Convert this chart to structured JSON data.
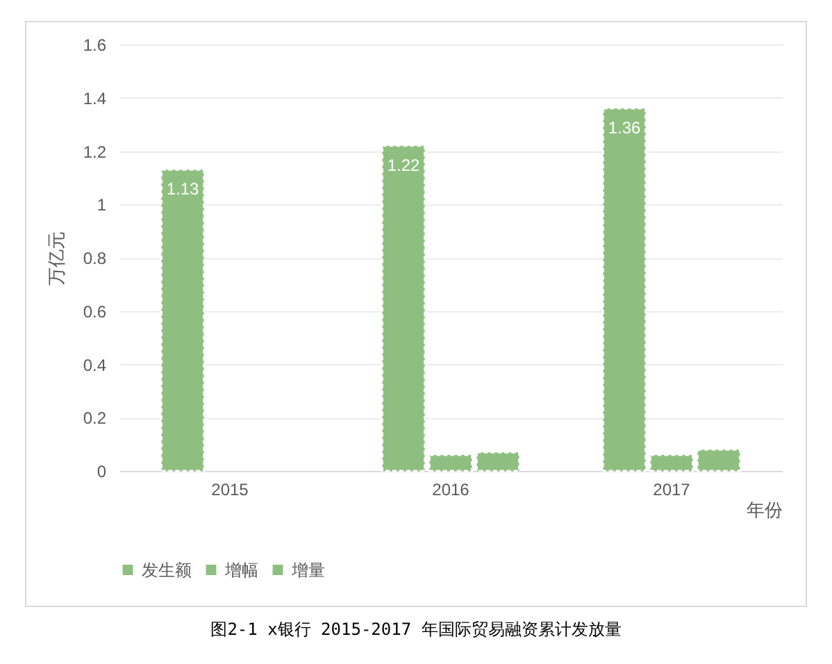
{
  "chart_data": {
    "type": "bar",
    "ylabel": "万亿元",
    "xlabel": "年份",
    "categories": [
      "2015",
      "2016",
      "2017"
    ],
    "series": [
      {
        "name": "发生额",
        "color": "#8fbf80",
        "values": [
          1.13,
          1.22,
          1.36
        ],
        "value_labels": [
          "1.13",
          "1.22",
          "1.36"
        ]
      },
      {
        "name": "增幅",
        "color": "#8fbf80",
        "values": [
          null,
          0.06,
          0.06
        ]
      },
      {
        "name": "增量",
        "color": "#8fbf80",
        "values": [
          null,
          0.07,
          0.08
        ]
      }
    ],
    "ylim": [
      0,
      1.6
    ],
    "yticks": [
      0,
      0.2,
      0.4,
      0.6,
      0.8,
      1,
      1.2,
      1.4,
      1.6
    ],
    "grid": "y",
    "legend": "bottom",
    "annotations": [
      "图2-1  x银行 2015-2017 年国际贸易融资累计发放量"
    ]
  }
}
